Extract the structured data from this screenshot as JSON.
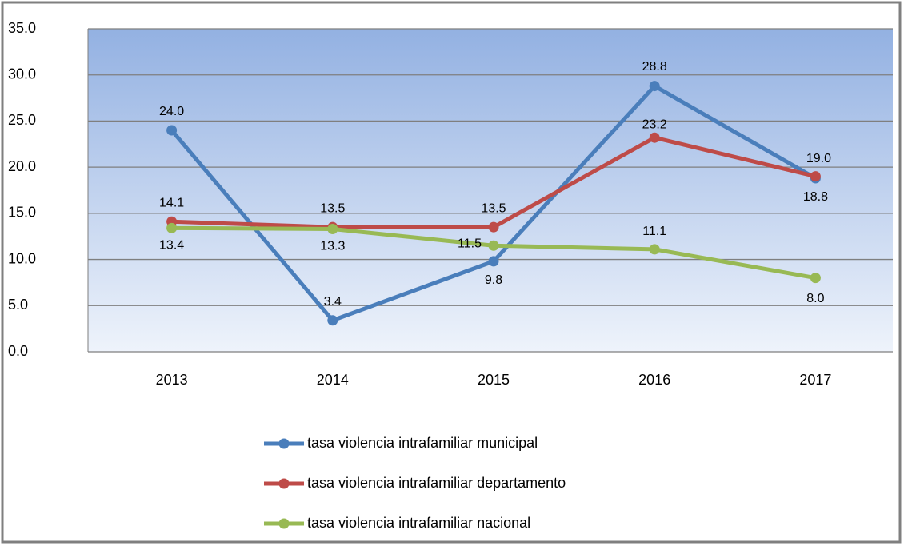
{
  "chart_data": {
    "type": "line",
    "categories": [
      "2013",
      "2014",
      "2015",
      "2016",
      "2017"
    ],
    "series": [
      {
        "name": "tasa violencia intrafamiliar municipal",
        "color": "#4a7ebb",
        "values": [
          24,
          3.4,
          9.8,
          28.8,
          18.8
        ],
        "value_labels": [
          "24.0",
          "3.4",
          "9.8",
          "28.8",
          "18.8"
        ]
      },
      {
        "name": "tasa violencia intrafamiliar departamento",
        "color": "#be4b48",
        "values": [
          14.1,
          13.5,
          13.5,
          23.2,
          19
        ],
        "value_labels": [
          "14.1",
          "13.5",
          "13.5",
          "23.2",
          "19.0"
        ]
      },
      {
        "name": "tasa violencia intrafamiliar nacional",
        "color": "#98b954",
        "values": [
          13.4,
          13.3,
          11.5,
          11.1,
          8
        ],
        "value_labels": [
          "13.4",
          "13.3",
          "11.5",
          "11.1",
          "8.0"
        ]
      }
    ],
    "ylim": [
      0,
      35
    ],
    "yticks": [
      {
        "value": 0,
        "label": "0.0"
      },
      {
        "value": 5,
        "label": "5.0"
      },
      {
        "value": 10,
        "label": "10.0"
      },
      {
        "value": 15,
        "label": "15.0"
      },
      {
        "value": 20,
        "label": "20.0"
      },
      {
        "value": 25,
        "label": "25.0"
      },
      {
        "value": 30,
        "label": "30.0"
      },
      {
        "value": 35,
        "label": "35.0"
      }
    ],
    "grid": true,
    "legend": "bottom"
  }
}
